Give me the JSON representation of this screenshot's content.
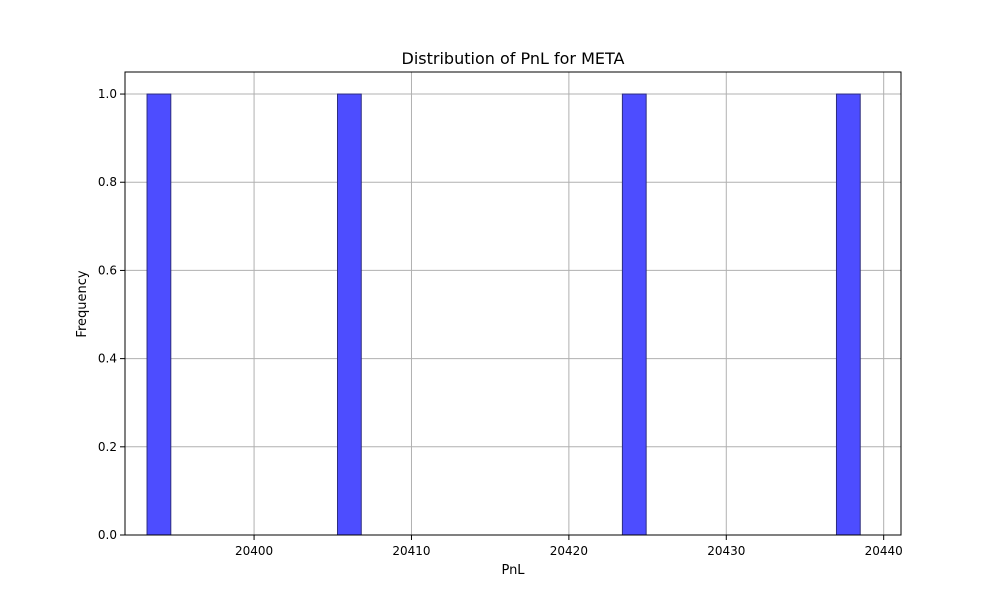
{
  "chart_data": {
    "type": "bar",
    "title": "Distribution of PnL for META",
    "xlabel": "PnL",
    "ylabel": "Frequency",
    "xlim": [
      20391.8,
      20441.1
    ],
    "ylim": [
      0,
      1.05
    ],
    "x_ticks": [
      20400,
      20410,
      20420,
      20430,
      20440
    ],
    "y_ticks": [
      0.0,
      0.2,
      0.4,
      0.6,
      0.8,
      1.0
    ],
    "y_tick_labels": [
      "0.0",
      "0.2",
      "0.4",
      "0.6",
      "0.8",
      "1.0"
    ],
    "bin_width": 1.51,
    "bins": [
      {
        "x0": 20393.2,
        "x1": 20394.71,
        "value": 1
      },
      {
        "x0": 20405.3,
        "x1": 20406.81,
        "value": 1
      },
      {
        "x0": 20423.4,
        "x1": 20424.91,
        "value": 1
      },
      {
        "x0": 20437.0,
        "x1": 20438.51,
        "value": 1
      }
    ],
    "bar_color": "#4d4dff",
    "bar_edge_color": "#2e2e80",
    "grid": true,
    "grid_color": "#b0b0b0"
  }
}
